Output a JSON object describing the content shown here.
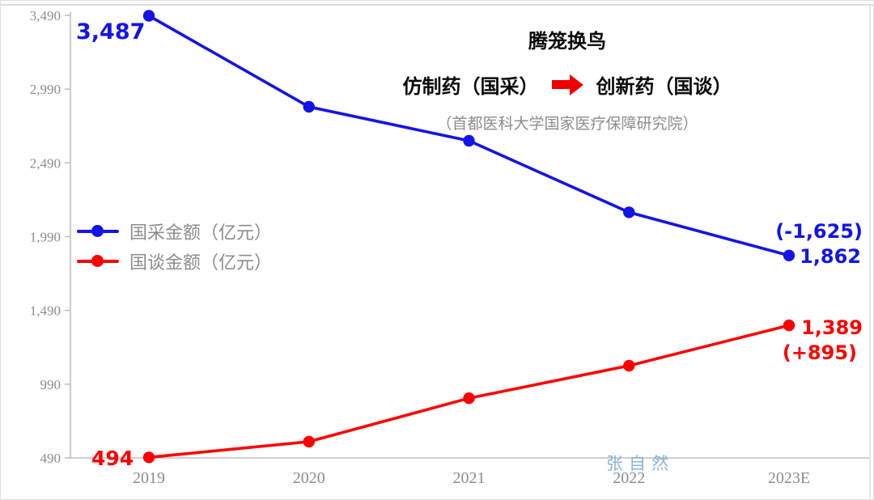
{
  "frame": {
    "background": "#ffffff",
    "border_color": "#d9d9d9"
  },
  "chart_data": {
    "type": "line",
    "title": "腾笼换鸟",
    "subtitle_left": "仿制药（国采）",
    "subtitle_right": "创新药（国谈）",
    "subtitle_arrow": "right-arrow",
    "source": "（首都医科大学国家医疗保障研究院）",
    "watermark": "张自然",
    "x": [
      "2019",
      "2020",
      "2021",
      "2022",
      "2023E"
    ],
    "series": [
      {
        "name": "国采金额（亿元）",
        "color": "#1414e8",
        "values": [
          3487,
          2870,
          2640,
          2155,
          1862
        ],
        "point_labels": {
          "first": "3,487",
          "last": "1,862",
          "change": "(-1,625)"
        }
      },
      {
        "name": "国谈金额（亿元）",
        "color": "#fe0000",
        "values": [
          494,
          600,
          895,
          1115,
          1389
        ],
        "point_labels": {
          "first": "494",
          "last": "1,389",
          "change": "(+895)"
        }
      }
    ],
    "ylim": [
      490,
      3490
    ],
    "yticks": [
      490,
      990,
      1490,
      1990,
      2490,
      2990,
      3490
    ],
    "ytick_labels": [
      "490",
      "990",
      "1,490",
      "1,990",
      "2,490",
      "2,990",
      "3,490"
    ],
    "grid": false,
    "legend_position": "middle-left",
    "axis_color": "#bfbfbf",
    "text_color": "#8c8c8c",
    "arrow_color": "#ee0000"
  }
}
